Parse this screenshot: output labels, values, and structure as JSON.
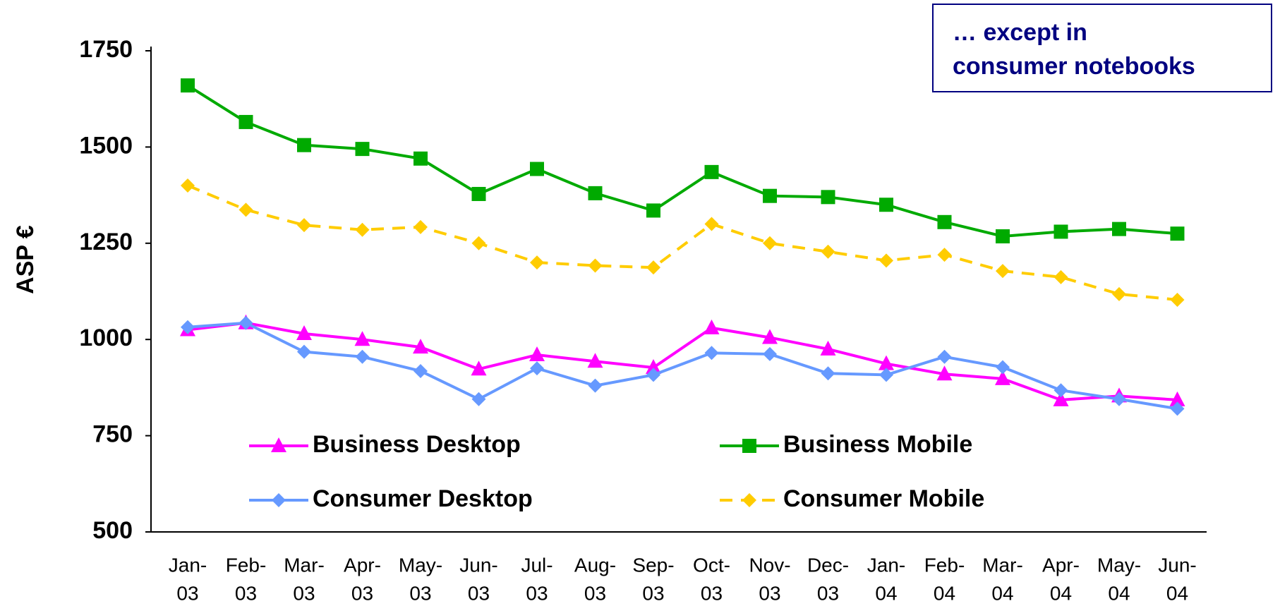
{
  "chart_data": {
    "type": "line",
    "y_label": "ASP €",
    "annotation": [
      "… except in",
      "consumer notebooks"
    ],
    "categories": [
      [
        "Jan-",
        "03"
      ],
      [
        "Feb-",
        "03"
      ],
      [
        "Mar-",
        "03"
      ],
      [
        "Apr-",
        "03"
      ],
      [
        "May-",
        "03"
      ],
      [
        "Jun-",
        "03"
      ],
      [
        "Jul-",
        "03"
      ],
      [
        "Aug-",
        "03"
      ],
      [
        "Sep-",
        "03"
      ],
      [
        "Oct-",
        "03"
      ],
      [
        "Nov-",
        "03"
      ],
      [
        "Dec-",
        "03"
      ],
      [
        "Jan-",
        "04"
      ],
      [
        "Feb-",
        "04"
      ],
      [
        "Mar-",
        "04"
      ],
      [
        "Apr-",
        "04"
      ],
      [
        "May-",
        "04"
      ],
      [
        "Jun-",
        "04"
      ]
    ],
    "series": [
      {
        "name": "Business Desktop",
        "color": "#ff00ff",
        "marker": "triangle",
        "values": [
          1025,
          1043,
          1015,
          1000,
          980,
          923,
          960,
          943,
          927,
          1030,
          1005,
          975,
          937,
          910,
          898,
          843,
          853,
          843
        ]
      },
      {
        "name": "Business Mobile",
        "color": "#00aa00",
        "marker": "square",
        "values": [
          1660,
          1565,
          1505,
          1495,
          1470,
          1378,
          1443,
          1380,
          1335,
          1435,
          1373,
          1370,
          1350,
          1305,
          1268,
          1280,
          1287,
          1275
        ]
      },
      {
        "name": "Consumer Desktop",
        "color": "#6699ff",
        "marker": "diamond",
        "values": [
          1032,
          1043,
          968,
          955,
          918,
          845,
          925,
          880,
          908,
          965,
          962,
          912,
          908,
          955,
          928,
          868,
          845,
          820
        ]
      },
      {
        "name": "Consumer Mobile",
        "color": "#ffcc00",
        "marker": "diamond",
        "dashed": true,
        "values": [
          1400,
          1337,
          1297,
          1285,
          1292,
          1250,
          1200,
          1192,
          1187,
          1300,
          1250,
          1228,
          1205,
          1220,
          1178,
          1162,
          1118,
          1103
        ]
      }
    ],
    "ylim": [
      500,
      1750
    ],
    "yticks": [
      500,
      750,
      1000,
      1250,
      1500,
      1750
    ],
    "grid": false
  }
}
